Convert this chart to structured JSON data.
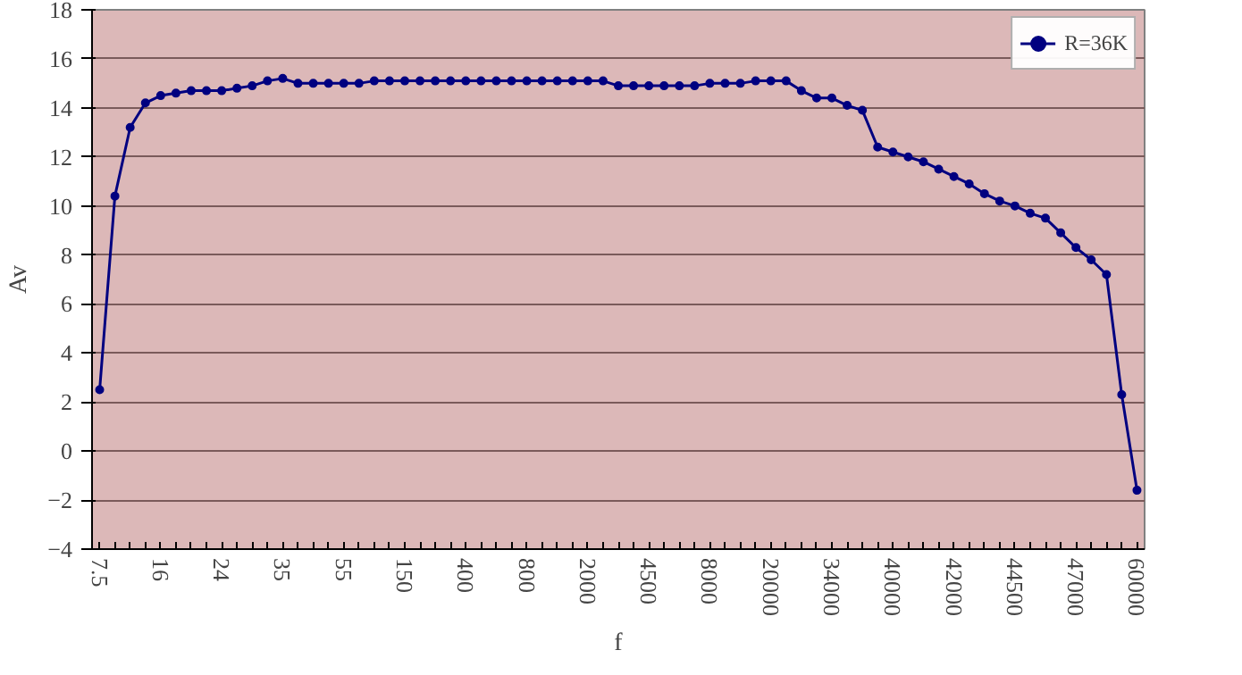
{
  "chart_data": {
    "type": "line",
    "xlabel": "f",
    "ylabel": "Av",
    "categories": [
      "7.5",
      null,
      null,
      null,
      "16",
      null,
      null,
      null,
      "24",
      null,
      null,
      null,
      "35",
      null,
      null,
      null,
      "55",
      null,
      null,
      null,
      "150",
      null,
      null,
      null,
      "400",
      null,
      null,
      null,
      "800",
      null,
      null,
      null,
      "2000",
      null,
      null,
      null,
      "4500",
      null,
      null,
      null,
      "8000",
      null,
      null,
      null,
      "20000",
      null,
      null,
      null,
      "34000",
      null,
      null,
      null,
      "40000",
      null,
      null,
      null,
      "42000",
      null,
      null,
      null,
      "44500",
      null,
      null,
      null,
      "47000",
      null,
      null,
      null,
      "60000"
    ],
    "series": [
      {
        "name": "R=36K",
        "color": "#000080",
        "values": [
          2.5,
          10.4,
          13.2,
          14.2,
          14.5,
          14.6,
          14.7,
          14.7,
          14.7,
          14.8,
          14.9,
          15.1,
          15.2,
          15.0,
          15.0,
          15.0,
          15.0,
          15.0,
          15.1,
          15.1,
          15.1,
          15.1,
          15.1,
          15.1,
          15.1,
          15.1,
          15.1,
          15.1,
          15.1,
          15.1,
          15.1,
          15.1,
          15.1,
          15.1,
          14.9,
          14.9,
          14.9,
          14.9,
          14.9,
          14.9,
          15.0,
          15.0,
          15.0,
          15.1,
          15.1,
          15.1,
          14.7,
          14.4,
          14.4,
          14.1,
          13.9,
          12.4,
          12.2,
          12.0,
          11.8,
          11.5,
          11.2,
          10.9,
          10.5,
          10.2,
          10.0,
          9.7,
          9.5,
          8.9,
          8.3,
          7.8,
          7.2,
          2.3,
          -1.6
        ]
      }
    ],
    "ylim": [
      -4,
      18
    ],
    "yticks": [
      -4,
      -2,
      0,
      2,
      4,
      6,
      8,
      10,
      12,
      14,
      16,
      18
    ],
    "grid": "y",
    "legend": "top right",
    "marker": "circle",
    "line_style": "solid"
  }
}
